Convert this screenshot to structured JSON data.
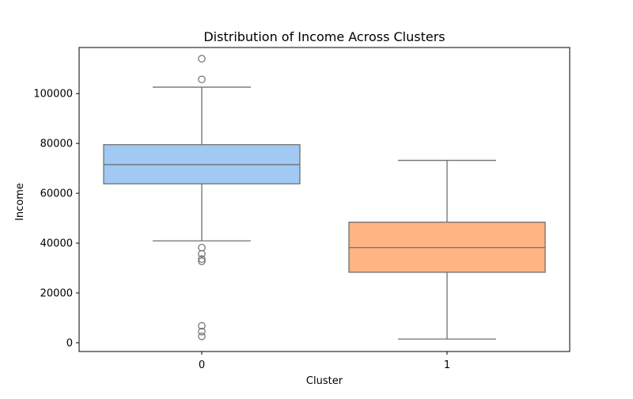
{
  "chart_data": {
    "type": "box",
    "title": "Distribution of Income Across Clusters",
    "xlabel": "Cluster",
    "ylabel": "Income",
    "ylim": [
      -3500,
      118500
    ],
    "y_ticks": [
      0,
      20000,
      40000,
      60000,
      80000,
      100000
    ],
    "y_tick_labels": [
      "0",
      "20000",
      "40000",
      "60000",
      "80000",
      "100000"
    ],
    "grid": false,
    "categories": [
      "0",
      "1"
    ],
    "boxes": [
      {
        "category": "0",
        "color": "#a1c9f4",
        "whisker_low": 40900,
        "q1": 63800,
        "median": 71500,
        "q3": 79500,
        "whisker_high": 102600,
        "outliers": [
          114000,
          105700,
          38200,
          35700,
          33600,
          32700,
          6800,
          4500,
          2600
        ]
      },
      {
        "category": "1",
        "color": "#ffb482",
        "whisker_low": 1500,
        "q1": 28300,
        "median": 38200,
        "q3": 48400,
        "whisker_high": 73200,
        "outliers": []
      }
    ],
    "line_color": "#707070",
    "axis_color": "#000000"
  }
}
